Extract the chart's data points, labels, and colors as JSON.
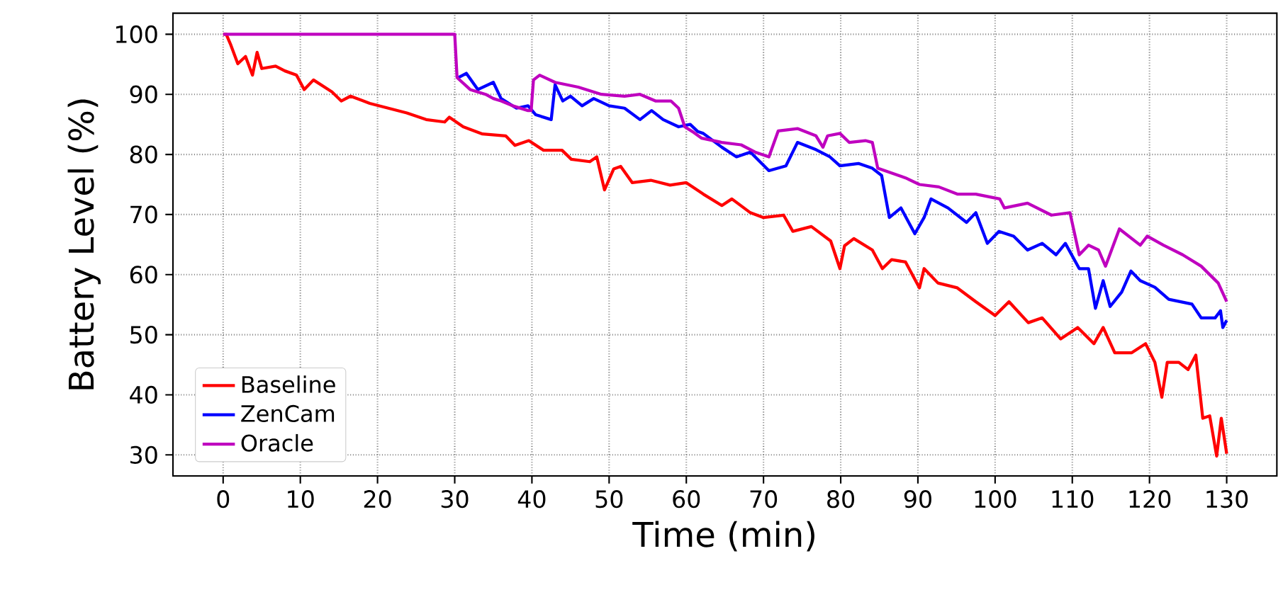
{
  "chart_data": {
    "type": "line",
    "xlabel": "Time (min)",
    "ylabel": "Battery Level (%)",
    "xlim": [
      -6.5,
      136.5
    ],
    "ylim": [
      26.5,
      103.5
    ],
    "xticks": [
      0,
      10,
      20,
      30,
      40,
      50,
      60,
      70,
      80,
      90,
      100,
      110,
      120,
      130
    ],
    "yticks": [
      30,
      40,
      50,
      60,
      70,
      80,
      90,
      100
    ],
    "grid": true,
    "legend": "bottom left",
    "series": [
      {
        "name": "Baseline",
        "color": "#ff0000",
        "x": [
          0,
          0.4,
          1,
          1.9,
          2.9,
          3.8,
          4.4,
          5,
          6.8,
          8,
          9.5,
          10.5,
          11.7,
          14.1,
          15.3,
          16.5,
          19,
          21.4,
          23.8,
          26.3,
          28.7,
          29.3,
          31.1,
          33.6,
          36.6,
          37.8,
          39.6,
          41.5,
          43.9,
          45.1,
          47.5,
          48.4,
          49.4,
          50.6,
          51.5,
          53,
          55.4,
          57.9,
          60,
          62.2,
          64.6,
          65.9,
          68.3,
          70,
          72.6,
          73.8,
          76.2,
          78.7,
          79.9,
          80.5,
          81.7,
          84.1,
          85.4,
          86.6,
          88.4,
          90.2,
          90.8,
          92.6,
          95.1,
          97.5,
          100,
          101.8,
          104.3,
          106.1,
          108.5,
          110.7,
          112.8,
          114,
          115.5,
          117.7,
          119.5,
          120.7,
          121.6,
          122.3,
          123.8,
          125,
          126,
          126.9,
          127.8,
          128.7,
          129.3,
          130
        ],
        "values": [
          100,
          100,
          98.2,
          95.1,
          96.3,
          93.2,
          97,
          94.3,
          94.7,
          93.9,
          93.2,
          90.8,
          92.4,
          90.4,
          88.9,
          89.7,
          88.5,
          87.7,
          86.9,
          85.8,
          85.4,
          86.2,
          84.6,
          83.4,
          83.1,
          81.5,
          82.3,
          80.7,
          80.7,
          79.2,
          78.8,
          79.6,
          74.1,
          77.6,
          78,
          75.3,
          75.7,
          74.9,
          75.3,
          73.4,
          71.5,
          72.6,
          70.3,
          69.5,
          69.9,
          67.2,
          68,
          65.6,
          61,
          64.8,
          66,
          64.1,
          61,
          62.5,
          62.1,
          57.8,
          61,
          58.6,
          57.8,
          55.5,
          53.2,
          55.5,
          52,
          52.8,
          49.3,
          51.2,
          48.5,
          51.2,
          47,
          47,
          48.5,
          45.4,
          39.6,
          45.4,
          45.4,
          44.2,
          46.6,
          36.1,
          36.5,
          29.8,
          36.1,
          30.2
        ]
      },
      {
        "name": "ZenCam",
        "color": "#0000ff",
        "x": [
          30.5,
          31.5,
          33,
          35,
          36,
          38,
          39.5,
          40.5,
          42.5,
          43,
          44,
          45,
          46.5,
          48,
          50,
          52,
          54,
          55.5,
          57,
          59,
          60.5,
          61.5,
          62.2,
          64.6,
          66.5,
          68.3,
          70.7,
          72.9,
          74.4,
          76.8,
          78.6,
          79.9,
          82.3,
          84.1,
          85.3,
          86.3,
          87.8,
          89.6,
          90.8,
          91.7,
          93.9,
          96.3,
          97.5,
          99,
          100.5,
          102.4,
          104.2,
          106.1,
          107.9,
          109.1,
          110.9,
          112.1,
          113,
          114,
          114.9,
          116.4,
          117.6,
          118.8,
          120.7,
          122.5,
          125.5,
          126.7,
          128.5,
          129.2,
          129.5,
          130
        ],
        "values": [
          92.8,
          93.5,
          90.8,
          92,
          89.3,
          87.7,
          88.1,
          86.6,
          85.8,
          91.6,
          88.9,
          89.7,
          88.1,
          89.3,
          88.1,
          87.7,
          85.8,
          87.3,
          85.8,
          84.6,
          85,
          83.8,
          83.5,
          81.2,
          79.6,
          80.4,
          77.3,
          78.1,
          82,
          80.8,
          79.6,
          78.1,
          78.5,
          77.7,
          76.5,
          69.5,
          71.1,
          66.8,
          69.5,
          72.6,
          71.1,
          68.7,
          70.3,
          65.2,
          67.2,
          66.4,
          64.1,
          65.2,
          63.3,
          65.2,
          61,
          61,
          54.4,
          59,
          54.7,
          57.1,
          60.6,
          59,
          57.9,
          55.9,
          55.1,
          52.8,
          52.8,
          54,
          51.2,
          52.4
        ]
      },
      {
        "name": "Oracle",
        "color": "#bf00bf",
        "x": [
          0,
          30,
          30.3,
          32,
          34,
          35,
          36,
          37.5,
          39.5,
          39.9,
          40.2,
          41,
          43,
          46,
          49,
          52,
          54,
          56,
          58,
          59,
          59.8,
          60.8,
          62,
          64.6,
          67.1,
          68.9,
          70.7,
          71.9,
          74.4,
          76.8,
          77.7,
          78.3,
          79.9,
          81.1,
          83.2,
          84.1,
          84.8,
          86.6,
          88.4,
          90.2,
          92.7,
          95.1,
          97.5,
          100.6,
          101.2,
          104.2,
          107.3,
          109.7,
          110.9,
          112.1,
          113.4,
          114.3,
          116.1,
          118.8,
          119.7,
          121.8,
          124.3,
          126.7,
          128.9,
          130
        ],
        "values": [
          100,
          100,
          92.8,
          90.8,
          90,
          89.3,
          88.9,
          88.1,
          87.3,
          87.3,
          92.4,
          93.2,
          92,
          91.2,
          90,
          89.7,
          90,
          88.9,
          88.9,
          87.7,
          84.6,
          83.8,
          82.7,
          82,
          81.6,
          80.4,
          79.6,
          83.9,
          84.3,
          83.1,
          81.2,
          83.1,
          83.5,
          82,
          82.3,
          82,
          77.7,
          76.9,
          76.1,
          75,
          74.6,
          73.4,
          73.4,
          72.6,
          71.1,
          71.9,
          69.9,
          70.3,
          63.3,
          64.9,
          64.1,
          61.4,
          67.6,
          64.9,
          66.4,
          64.9,
          63.3,
          61.4,
          58.6,
          55.5
        ]
      }
    ]
  }
}
